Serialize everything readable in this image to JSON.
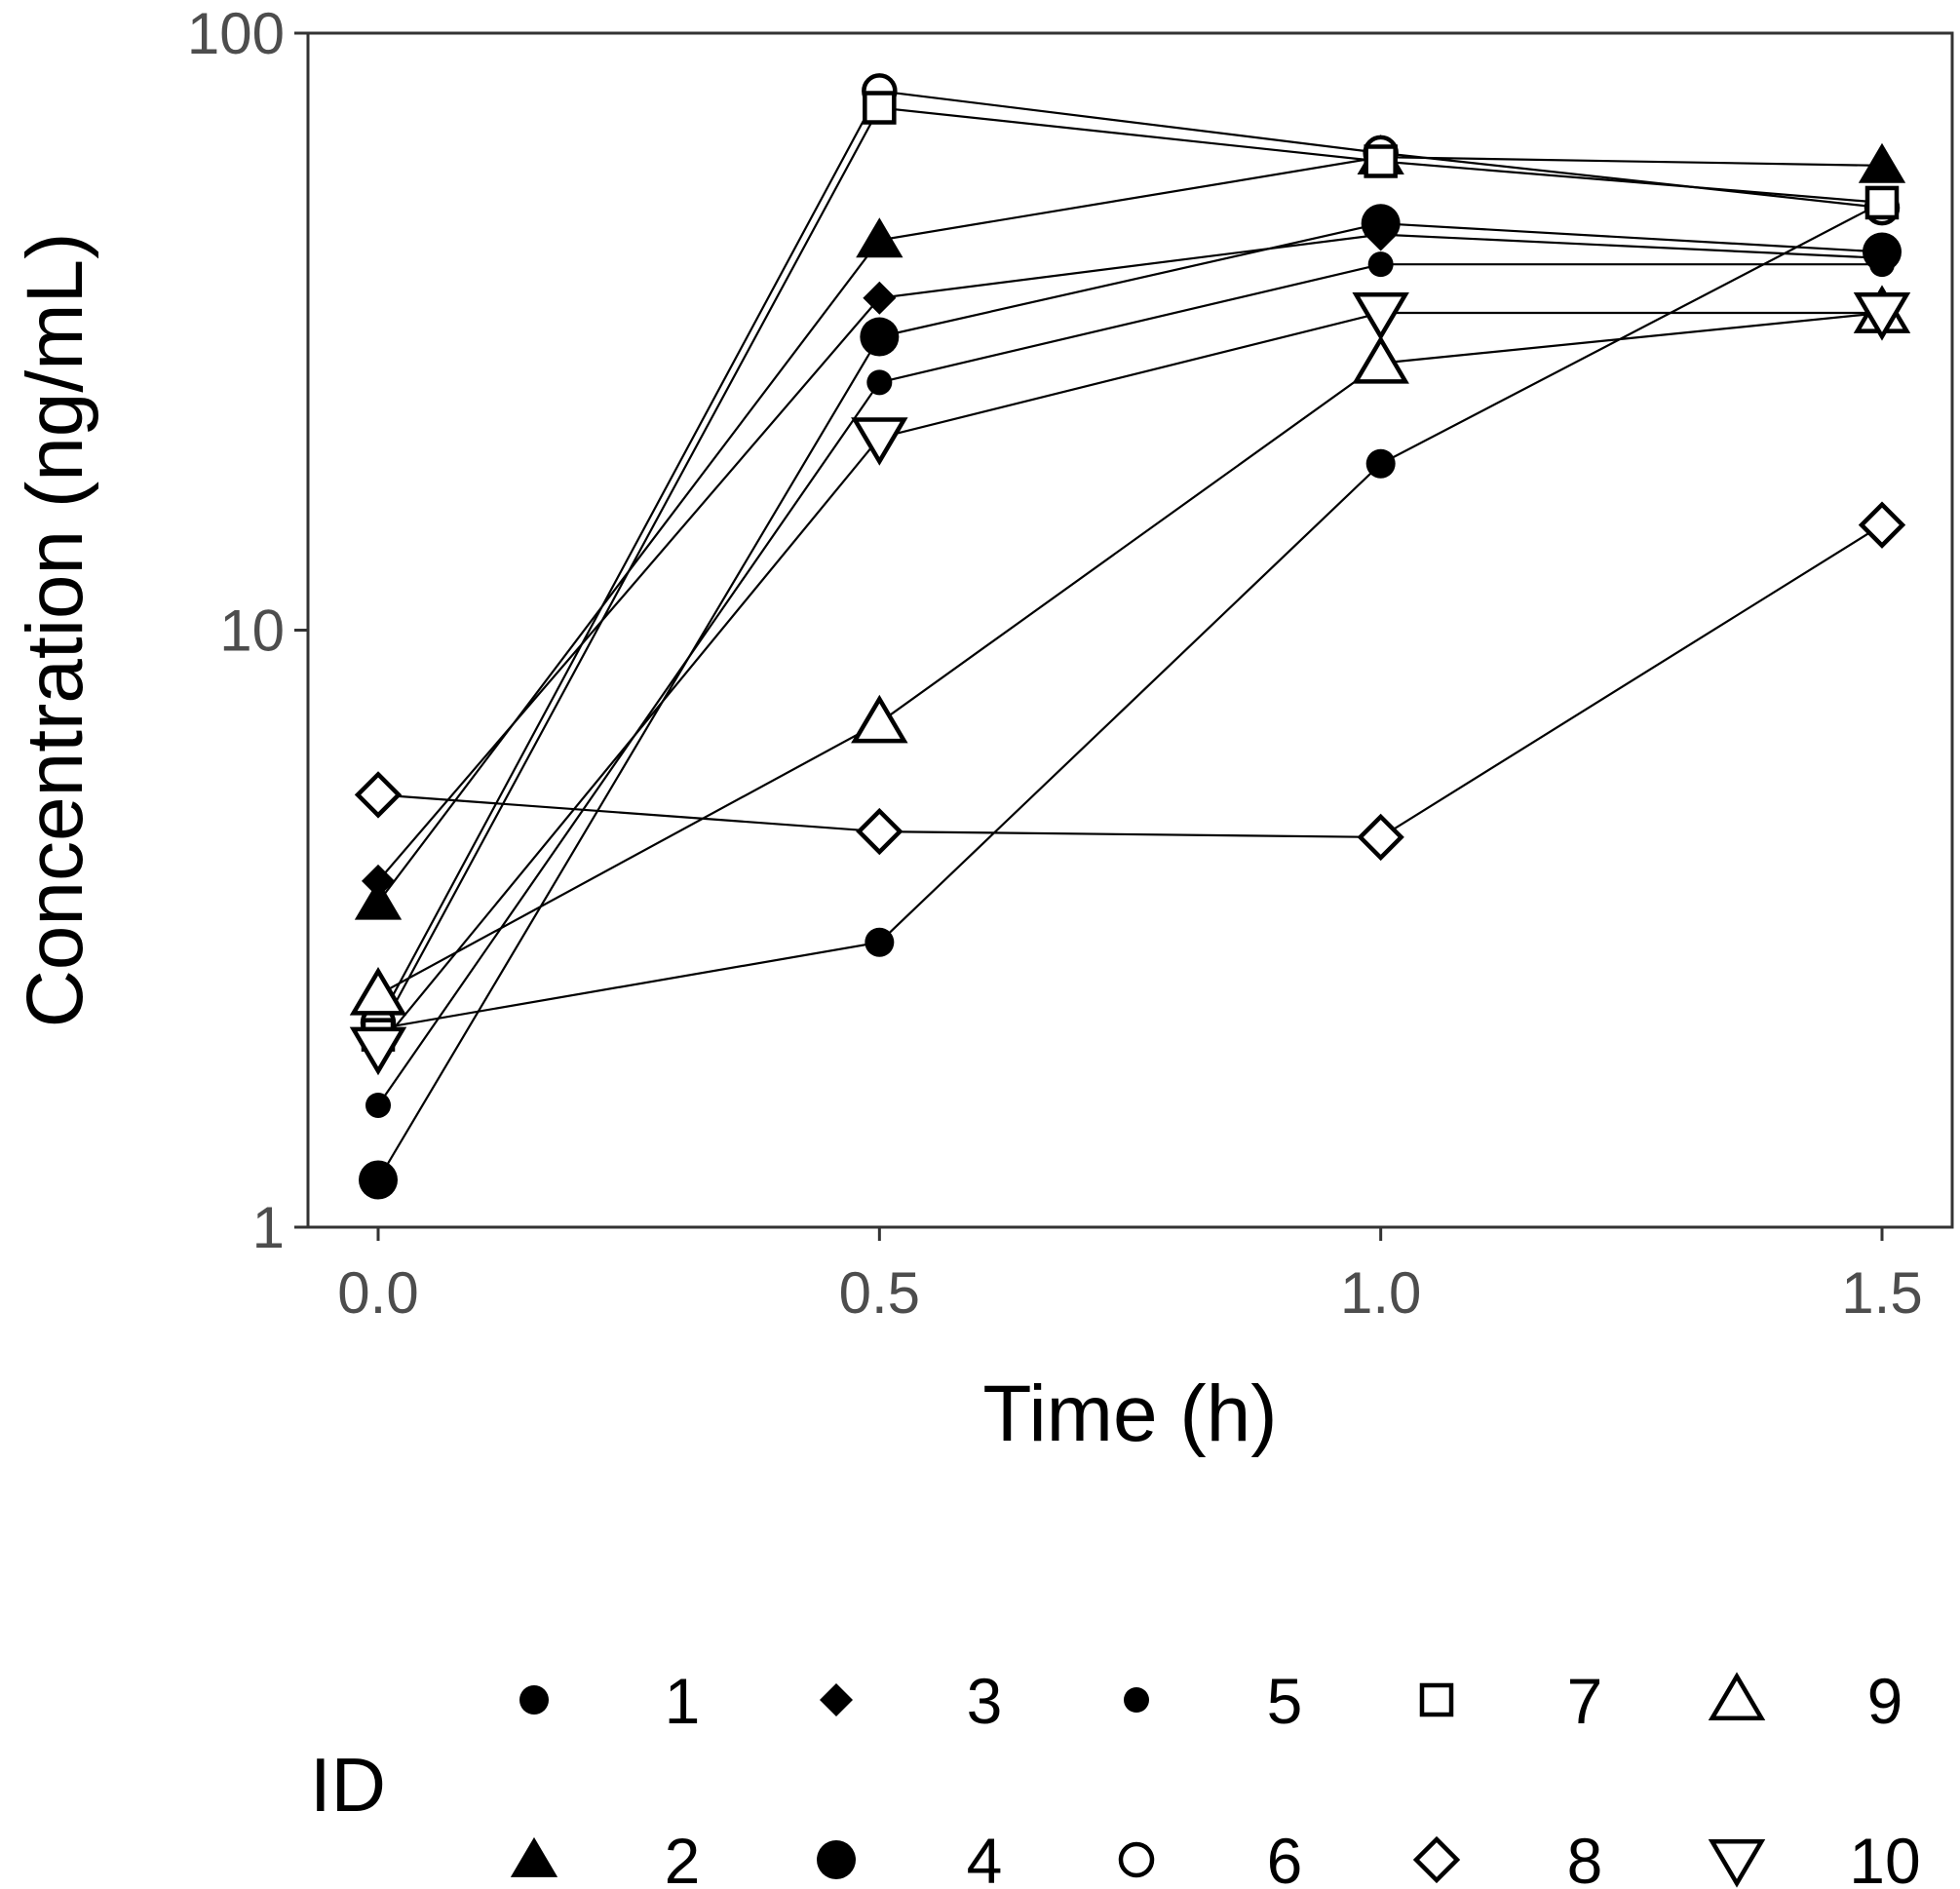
{
  "chart_data": {
    "type": "line",
    "xlabel": "Time (h)",
    "ylabel": "Concentration (ng/mL)",
    "x_scale": "linear",
    "y_scale": "log10",
    "xlim": [
      -0.07,
      1.57
    ],
    "ylim": [
      1,
      100
    ],
    "x_ticks": [
      0.0,
      0.5,
      1.0,
      1.5
    ],
    "x_tick_labels": [
      "0.0",
      "0.5",
      "1.0",
      "1.5"
    ],
    "y_ticks": [
      1,
      10,
      100
    ],
    "y_tick_labels": [
      "1",
      "10",
      "100"
    ],
    "grid": false,
    "legend": {
      "title": "ID",
      "position": "bottom",
      "layout": "2 rows x 5 columns"
    },
    "x": [
      0.0,
      0.5,
      1.0,
      1.5
    ],
    "series": [
      {
        "name": "1",
        "shape": "filled-circle-small",
        "values": [
          2.15,
          3.0,
          19.0,
          52.0
        ]
      },
      {
        "name": "2",
        "shape": "filled-triangle-up",
        "values": [
          3.5,
          45.0,
          62.0,
          60.0
        ]
      },
      {
        "name": "3",
        "shape": "filled-diamond",
        "values": [
          3.8,
          36.0,
          46.0,
          42.0
        ]
      },
      {
        "name": "4",
        "shape": "filled-circle-large",
        "values": [
          1.2,
          31.0,
          48.0,
          43.0
        ]
      },
      {
        "name": "5",
        "shape": "filled-circle-medium",
        "values": [
          1.6,
          26.0,
          41.0,
          41.0
        ]
      },
      {
        "name": "6",
        "shape": "open-circle",
        "values": [
          2.2,
          80.0,
          63.0,
          51.0
        ]
      },
      {
        "name": "7",
        "shape": "open-square",
        "values": [
          2.1,
          75.0,
          61.0,
          52.0
        ]
      },
      {
        "name": "8",
        "shape": "open-diamond",
        "values": [
          5.3,
          4.6,
          4.5,
          15.0
        ]
      },
      {
        "name": "9",
        "shape": "open-triangle-up",
        "values": [
          2.45,
          7.0,
          28.0,
          34.0
        ]
      },
      {
        "name": "10",
        "shape": "open-triangle-down",
        "values": [
          2.0,
          21.0,
          34.0,
          34.0
        ]
      }
    ]
  }
}
